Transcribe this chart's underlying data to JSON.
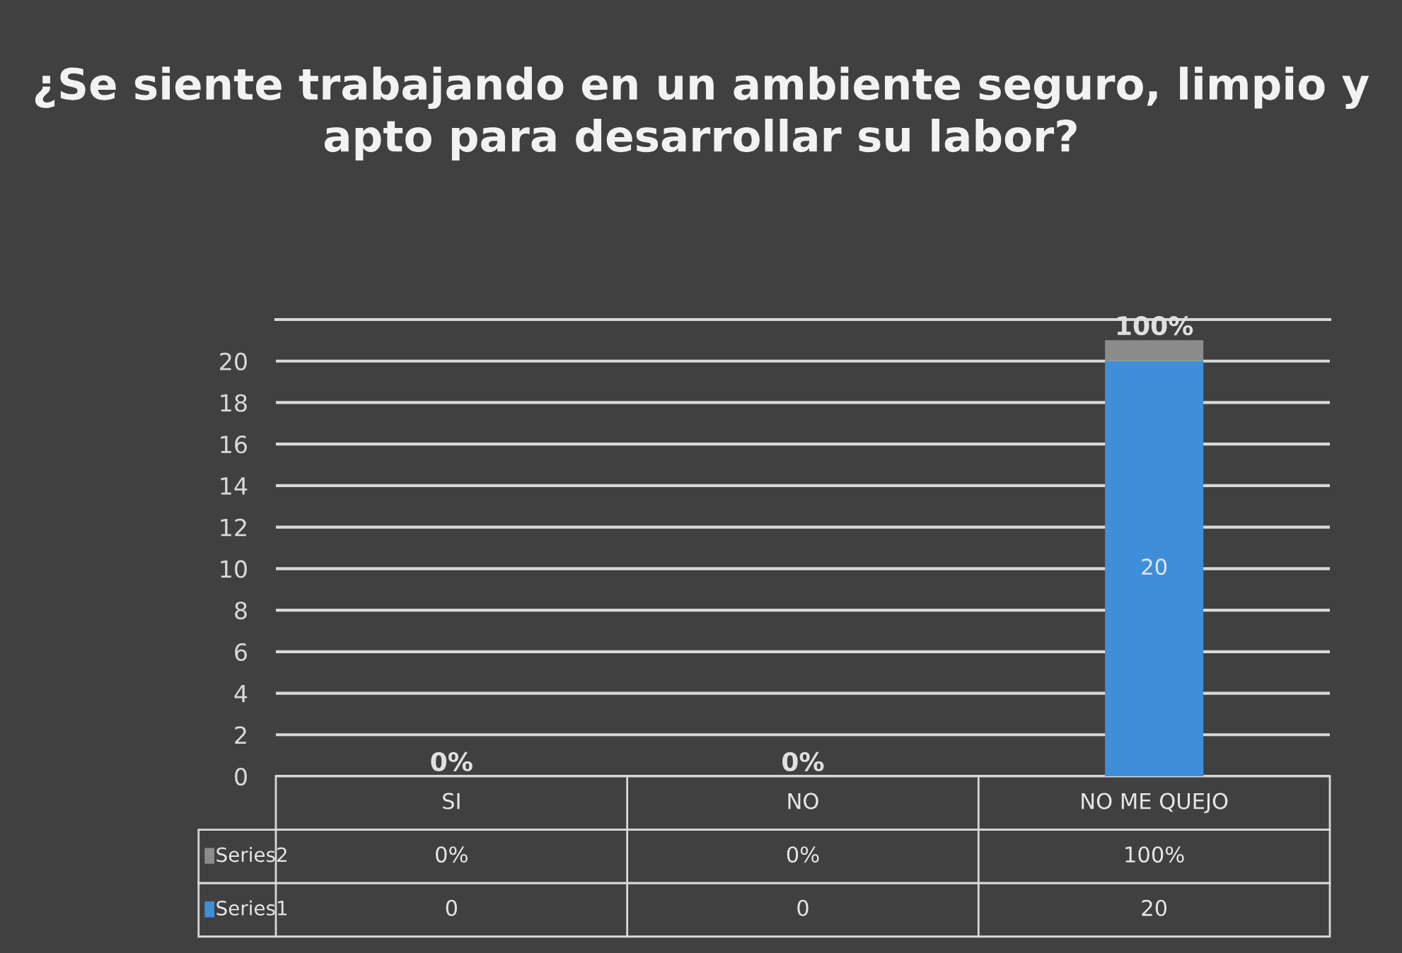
{
  "chart_data": {
    "type": "bar",
    "title": "¿Se siente trabajando en un ambiente seguro, limpio y apto para desarrollar su labor?",
    "categories": [
      "SI",
      "NO",
      "NO ME QUEJO"
    ],
    "stacked": true,
    "series": [
      {
        "name": "Series1",
        "color": "#3f8fd8",
        "values": [
          0,
          0,
          20
        ],
        "value_labels": [
          "0",
          "0",
          "20"
        ]
      },
      {
        "name": "Series2",
        "color": "#8c8c8c",
        "values": [
          0,
          0,
          1
        ],
        "value_labels": [
          "0%",
          "0%",
          "100%"
        ]
      }
    ],
    "ylim": [
      0,
      22
    ],
    "yticks": [
      0,
      2,
      4,
      6,
      8,
      10,
      12,
      14,
      16,
      18,
      20
    ],
    "grid": "y",
    "legend": "bottom left"
  }
}
